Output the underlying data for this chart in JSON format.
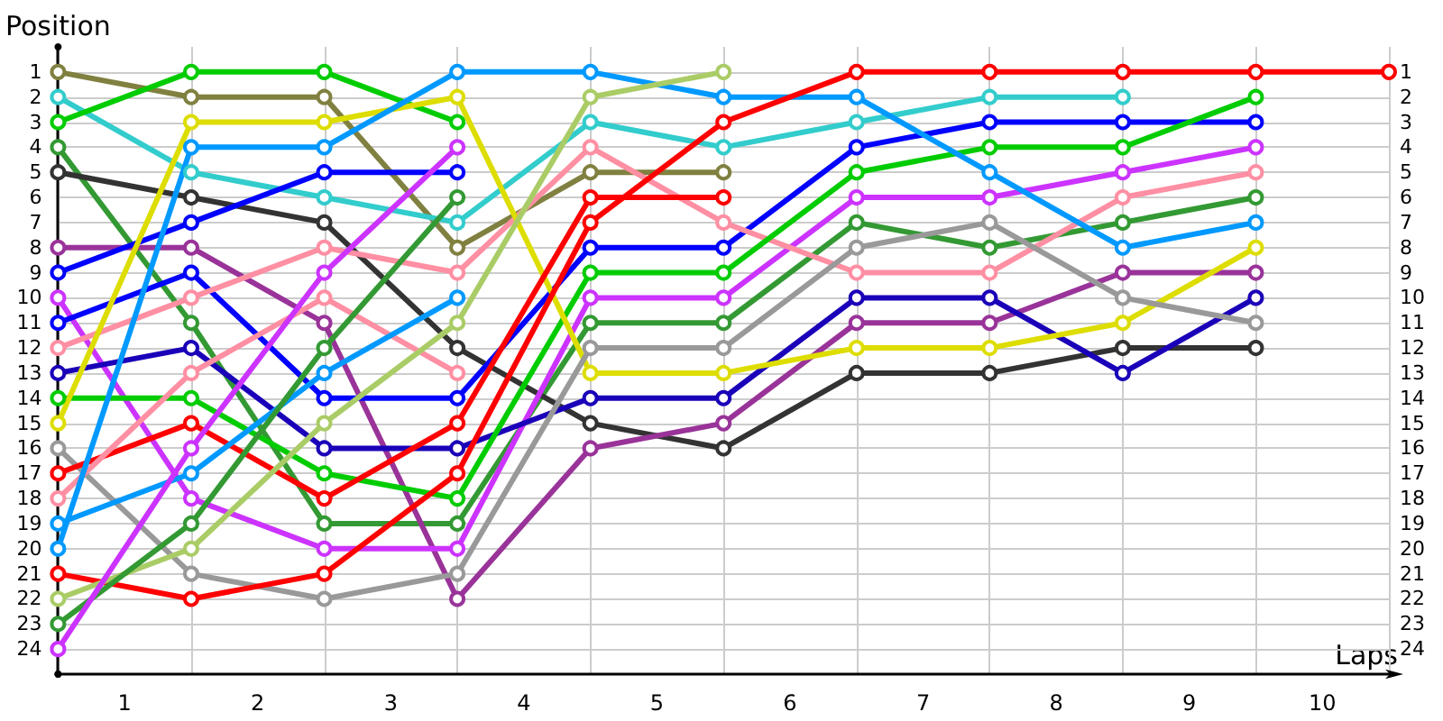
{
  "chart_data": {
    "type": "line",
    "xlabel": "Laps",
    "ylabel": "Position",
    "x": [
      0,
      1,
      2,
      3,
      4,
      5,
      6,
      7,
      8,
      9,
      10
    ],
    "xlim": [
      0,
      10
    ],
    "xticks": [
      {
        "value": 0,
        "label": null
      },
      {
        "value": 0.5,
        "label": "1"
      },
      {
        "value": 1,
        "label": null
      },
      {
        "value": 1.5,
        "label": "2"
      },
      {
        "value": 2,
        "label": null
      },
      {
        "value": 2.5,
        "label": "3"
      },
      {
        "value": 3,
        "label": null
      },
      {
        "value": 3.5,
        "label": "4"
      },
      {
        "value": 4,
        "label": null
      },
      {
        "value": 4.5,
        "label": "5"
      },
      {
        "value": 5,
        "label": null
      },
      {
        "value": 5.5,
        "label": "6"
      },
      {
        "value": 6,
        "label": null
      },
      {
        "value": 6.5,
        "label": "7"
      },
      {
        "value": 7,
        "label": null
      },
      {
        "value": 7.5,
        "label": "8"
      },
      {
        "value": 8,
        "label": null
      },
      {
        "value": 8.5,
        "label": "9"
      },
      {
        "value": 9,
        "label": null
      },
      {
        "value": 9.5,
        "label": "10"
      },
      {
        "value": 10,
        "label": null
      }
    ],
    "ylim": [
      25,
      0
    ],
    "yticks": [
      1,
      2,
      3,
      4,
      5,
      6,
      7,
      8,
      9,
      10,
      11,
      12,
      13,
      14,
      15,
      16,
      17,
      18,
      19,
      20,
      21,
      22,
      23,
      24
    ],
    "y2lim": [
      25,
      0
    ],
    "y2ticks": [
      1,
      2,
      3,
      4,
      5,
      6,
      7,
      8,
      9,
      10,
      11,
      12,
      13,
      14,
      15,
      16,
      17,
      18,
      19,
      20,
      21,
      22,
      23,
      24
    ],
    "grid": true,
    "marker": "circle",
    "line_style": "solid",
    "series": [
      {
        "color": "#808040",
        "values": [
          1,
          2,
          2,
          8,
          5,
          5,
          null,
          null,
          null,
          null,
          null
        ]
      },
      {
        "color": "#33cccc",
        "values": [
          2,
          5,
          6,
          7,
          3,
          4,
          3,
          2,
          2,
          null,
          null
        ]
      },
      {
        "color": "#00cc00",
        "values": [
          3,
          1,
          1,
          3,
          null,
          null,
          null,
          null,
          null,
          null,
          null
        ]
      },
      {
        "color": "#339933",
        "values": [
          4,
          11,
          19,
          19,
          11,
          11,
          7,
          8,
          7,
          6,
          null
        ]
      },
      {
        "color": "#333333",
        "values": [
          5,
          6,
          7,
          12,
          15,
          16,
          13,
          13,
          12,
          12,
          null
        ]
      },
      {
        "color": "#993399",
        "values": [
          8,
          8,
          11,
          22,
          16,
          15,
          11,
          11,
          9,
          9,
          null
        ]
      },
      {
        "color": "#0000ff",
        "values": [
          9,
          7,
          5,
          5,
          null,
          null,
          null,
          null,
          null,
          null,
          null
        ]
      },
      {
        "color": "#cc33ff",
        "values": [
          10,
          18,
          20,
          20,
          10,
          10,
          6,
          6,
          5,
          4,
          null
        ]
      },
      {
        "color": "#0000ff",
        "values": [
          11,
          9,
          14,
          14,
          8,
          8,
          4,
          3,
          3,
          3,
          null
        ]
      },
      {
        "color": "#ff8fa3",
        "values": [
          12,
          10,
          8,
          9,
          4,
          7,
          9,
          9,
          6,
          5,
          null
        ]
      },
      {
        "color": "#1a00b8",
        "values": [
          13,
          12,
          16,
          16,
          14,
          14,
          10,
          10,
          13,
          10,
          null
        ]
      },
      {
        "color": "#00cc00",
        "values": [
          14,
          14,
          17,
          18,
          9,
          9,
          5,
          4,
          4,
          2,
          null
        ]
      },
      {
        "color": "#dddd00",
        "values": [
          15,
          3,
          3,
          2,
          13,
          13,
          12,
          12,
          11,
          8,
          null
        ]
      },
      {
        "color": "#999999",
        "values": [
          16,
          21,
          22,
          21,
          12,
          12,
          8,
          7,
          10,
          11,
          null
        ]
      },
      {
        "color": "#ff0000",
        "values": [
          17,
          15,
          18,
          15,
          6,
          6,
          null,
          null,
          null,
          null,
          null
        ]
      },
      {
        "color": "#ff8fa3",
        "values": [
          18,
          13,
          10,
          13,
          null,
          null,
          null,
          null,
          null,
          null,
          null
        ]
      },
      {
        "color": "#0099ff",
        "values": [
          19,
          17,
          13,
          10,
          null,
          null,
          null,
          null,
          null,
          null,
          null
        ]
      },
      {
        "color": "#0099ff",
        "values": [
          20,
          4,
          4,
          1,
          1,
          2,
          2,
          5,
          8,
          7,
          null
        ]
      },
      {
        "color": "#ff0000",
        "values": [
          21,
          22,
          21,
          17,
          7,
          3,
          1,
          1,
          1,
          1,
          1
        ]
      },
      {
        "color": "#aacc66",
        "values": [
          22,
          20,
          15,
          11,
          2,
          1,
          null,
          null,
          null,
          null,
          null
        ]
      },
      {
        "color": "#339933",
        "values": [
          23,
          19,
          12,
          6,
          null,
          null,
          null,
          null,
          null,
          null,
          null
        ]
      },
      {
        "color": "#cc33ff",
        "values": [
          24,
          16,
          9,
          4,
          null,
          null,
          null,
          null,
          null,
          null,
          null
        ]
      }
    ]
  }
}
